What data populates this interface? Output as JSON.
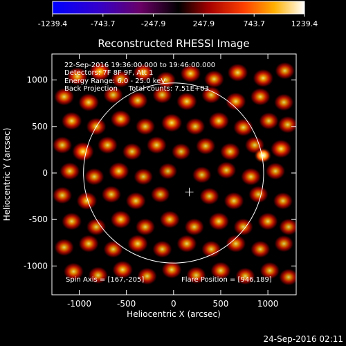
{
  "chart_data": {
    "type": "heatmap",
    "title": "Reconstructed RHESSI Image",
    "xlabel": "Heliocentric X (arcsec)",
    "ylabel": "Heliocentric Y (arcsec)",
    "xlim": [
      -1290,
      1300
    ],
    "ylim": [
      -1310,
      1280
    ],
    "x_ticks": [
      -1000,
      -500,
      0,
      500,
      1000
    ],
    "y_ticks": [
      -1000,
      -500,
      0,
      500,
      1000
    ],
    "colorbar": {
      "tick_values": [
        -1239.4,
        -743.7,
        -247.9,
        247.9,
        743.7,
        1239.4
      ],
      "tick_labels": [
        "-1239.4",
        "-743.7",
        "-247.9",
        "247.9",
        "743.7",
        "1239.4"
      ],
      "range": [
        -1239.4,
        1239.4
      ]
    },
    "info_lines": [
      "22-Sep-2016 19:36:00.000 to 19:46:00.000",
      "Detectors: 7F 8F 9F, Att 1",
      "Energy Range: 6.0 - 25.0 keV",
      "Back Projection     Total counts: 7.51E+03"
    ],
    "spin_axis_text": "Spin Axis = [167,-205]",
    "flare_position_text": "Flare Position = [946,189]",
    "spin_axis": [
      167,
      -205
    ],
    "flare_position": [
      946,
      189
    ],
    "solar_radius_arcsec": 955,
    "sources": [
      {
        "x": -1020,
        "y": 1040,
        "v": 0.7
      },
      {
        "x": -780,
        "y": 1090,
        "v": 0.8
      },
      {
        "x": -560,
        "y": 1010,
        "v": 0.6
      },
      {
        "x": -320,
        "y": 1080,
        "v": 0.7
      },
      {
        "x": -80,
        "y": 1000,
        "v": 0.6
      },
      {
        "x": 180,
        "y": 1070,
        "v": 0.7
      },
      {
        "x": 430,
        "y": 1010,
        "v": 0.65
      },
      {
        "x": 680,
        "y": 1080,
        "v": 0.7
      },
      {
        "x": 950,
        "y": 1020,
        "v": 0.7
      },
      {
        "x": 1180,
        "y": 1100,
        "v": 0.6
      },
      {
        "x": -1160,
        "y": 820,
        "v": 0.65
      },
      {
        "x": -900,
        "y": 760,
        "v": 0.7
      },
      {
        "x": -640,
        "y": 840,
        "v": 0.6
      },
      {
        "x": -380,
        "y": 780,
        "v": 0.65
      },
      {
        "x": -120,
        "y": 840,
        "v": 0.6
      },
      {
        "x": 140,
        "y": 770,
        "v": 0.7
      },
      {
        "x": 400,
        "y": 840,
        "v": 0.6
      },
      {
        "x": 660,
        "y": 770,
        "v": 0.7
      },
      {
        "x": 920,
        "y": 820,
        "v": 0.65
      },
      {
        "x": 1170,
        "y": 760,
        "v": 0.6
      },
      {
        "x": -1080,
        "y": 560,
        "v": 0.7
      },
      {
        "x": -820,
        "y": 500,
        "v": 0.65
      },
      {
        "x": -560,
        "y": 580,
        "v": 0.7
      },
      {
        "x": -300,
        "y": 500,
        "v": 0.6
      },
      {
        "x": -20,
        "y": 540,
        "v": 0.75
      },
      {
        "x": 230,
        "y": 500,
        "v": 0.6
      },
      {
        "x": 480,
        "y": 560,
        "v": 0.7
      },
      {
        "x": 740,
        "y": 490,
        "v": 0.65
      },
      {
        "x": 1010,
        "y": 560,
        "v": 0.6
      },
      {
        "x": 1210,
        "y": 520,
        "v": 0.6
      },
      {
        "x": -1180,
        "y": 300,
        "v": 0.6
      },
      {
        "x": -960,
        "y": 230,
        "v": 0.85
      },
      {
        "x": -700,
        "y": 300,
        "v": 0.65
      },
      {
        "x": -440,
        "y": 230,
        "v": 0.6
      },
      {
        "x": -180,
        "y": 300,
        "v": 0.65
      },
      {
        "x": 80,
        "y": 230,
        "v": 0.55
      },
      {
        "x": 340,
        "y": 290,
        "v": 0.6
      },
      {
        "x": 600,
        "y": 230,
        "v": 0.65
      },
      {
        "x": 860,
        "y": 300,
        "v": 0.6
      },
      {
        "x": 946,
        "y": 189,
        "v": 1.0
      },
      {
        "x": 1140,
        "y": 260,
        "v": 0.75
      },
      {
        "x": -1100,
        "y": 20,
        "v": 0.65
      },
      {
        "x": -840,
        "y": -40,
        "v": 0.6
      },
      {
        "x": -580,
        "y": 20,
        "v": 0.7
      },
      {
        "x": -320,
        "y": -40,
        "v": 0.55
      },
      {
        "x": -60,
        "y": 20,
        "v": 0.5
      },
      {
        "x": 300,
        "y": -20,
        "v": 0.55
      },
      {
        "x": 560,
        "y": 30,
        "v": 0.6
      },
      {
        "x": 820,
        "y": -40,
        "v": 0.65
      },
      {
        "x": 1080,
        "y": 20,
        "v": 0.6
      },
      {
        "x": -1180,
        "y": -240,
        "v": 0.6
      },
      {
        "x": -920,
        "y": -300,
        "v": 0.7
      },
      {
        "x": -660,
        "y": -230,
        "v": 0.6
      },
      {
        "x": -400,
        "y": -300,
        "v": 0.65
      },
      {
        "x": -140,
        "y": -230,
        "v": 0.55
      },
      {
        "x": 380,
        "y": -250,
        "v": 0.6
      },
      {
        "x": 640,
        "y": -300,
        "v": 0.65
      },
      {
        "x": 900,
        "y": -230,
        "v": 0.6
      },
      {
        "x": 1160,
        "y": -300,
        "v": 0.6
      },
      {
        "x": -1080,
        "y": -520,
        "v": 0.65
      },
      {
        "x": -820,
        "y": -580,
        "v": 0.6
      },
      {
        "x": -560,
        "y": -500,
        "v": 0.7
      },
      {
        "x": -300,
        "y": -580,
        "v": 0.6
      },
      {
        "x": -40,
        "y": -500,
        "v": 0.65
      },
      {
        "x": 220,
        "y": -580,
        "v": 0.6
      },
      {
        "x": 480,
        "y": -520,
        "v": 0.7
      },
      {
        "x": 740,
        "y": -580,
        "v": 0.6
      },
      {
        "x": 1000,
        "y": -520,
        "v": 0.65
      },
      {
        "x": 1220,
        "y": -580,
        "v": 0.55
      },
      {
        "x": -1160,
        "y": -800,
        "v": 0.6
      },
      {
        "x": -900,
        "y": -760,
        "v": 0.65
      },
      {
        "x": -640,
        "y": -820,
        "v": 0.6
      },
      {
        "x": -380,
        "y": -760,
        "v": 0.7
      },
      {
        "x": -120,
        "y": -820,
        "v": 0.6
      },
      {
        "x": 140,
        "y": -760,
        "v": 0.65
      },
      {
        "x": 400,
        "y": -820,
        "v": 0.6
      },
      {
        "x": 660,
        "y": -760,
        "v": 0.65
      },
      {
        "x": 920,
        "y": -820,
        "v": 0.6
      },
      {
        "x": 1170,
        "y": -760,
        "v": 0.55
      },
      {
        "x": -1060,
        "y": -1060,
        "v": 0.65
      },
      {
        "x": -800,
        "y": -1100,
        "v": 0.6
      },
      {
        "x": -540,
        "y": -1040,
        "v": 0.7
      },
      {
        "x": -280,
        "y": -1110,
        "v": 0.6
      },
      {
        "x": -20,
        "y": -1040,
        "v": 0.65
      },
      {
        "x": 240,
        "y": -1100,
        "v": 0.6
      },
      {
        "x": 500,
        "y": -1050,
        "v": 0.65
      },
      {
        "x": 760,
        "y": -1110,
        "v": 0.6
      },
      {
        "x": 1020,
        "y": -1050,
        "v": 0.6
      },
      {
        "x": 1220,
        "y": -1120,
        "v": 0.55
      }
    ]
  },
  "timestamp": "24-Sep-2016 02:11"
}
